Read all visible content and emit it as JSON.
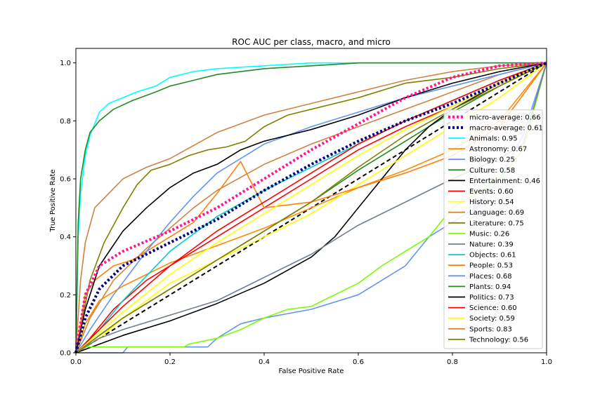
{
  "chart_data": {
    "type": "line",
    "title": "ROC AUC per class, macro, and micro",
    "xlabel": "False Positive Rate",
    "ylabel": "True Positive Rate",
    "xlim": [
      0,
      1
    ],
    "ylim": [
      0,
      1.05
    ],
    "xticks": [
      "0.0",
      "0.2",
      "0.4",
      "0.6",
      "0.8",
      "1.0"
    ],
    "yticks": [
      "0.0",
      "0.2",
      "0.4",
      "0.6",
      "0.8",
      "1.0"
    ],
    "legend_position": "lower-right",
    "grid": false,
    "chance_line": {
      "x": [
        0,
        1
      ],
      "y": [
        0,
        1
      ],
      "color": "#000000",
      "style": "dashed"
    },
    "series": [
      {
        "name": "micro-average: 0.66",
        "color": "#ff1493",
        "style": "dotted",
        "x": [
          0,
          0.02,
          0.05,
          0.1,
          0.2,
          0.3,
          0.4,
          0.5,
          0.6,
          0.7,
          0.8,
          0.9,
          1.0
        ],
        "y": [
          0,
          0.2,
          0.3,
          0.35,
          0.42,
          0.5,
          0.6,
          0.7,
          0.79,
          0.88,
          0.95,
          0.99,
          1.0
        ]
      },
      {
        "name": "macro-average: 0.61",
        "color": "#000080",
        "style": "dotted",
        "x": [
          0,
          0.02,
          0.05,
          0.1,
          0.2,
          0.3,
          0.4,
          0.5,
          0.6,
          0.7,
          0.8,
          0.9,
          1.0
        ],
        "y": [
          0,
          0.12,
          0.22,
          0.3,
          0.38,
          0.46,
          0.56,
          0.65,
          0.73,
          0.8,
          0.86,
          0.93,
          1.0
        ]
      },
      {
        "name": "Animals: 0.95",
        "color": "#00ffff",
        "style": "solid",
        "x": [
          0,
          0.005,
          0.01,
          0.02,
          0.03,
          0.05,
          0.07,
          0.1,
          0.13,
          0.17,
          0.2,
          0.25,
          0.3,
          0.4,
          0.5,
          0.6,
          0.8,
          1.0
        ],
        "y": [
          0,
          0.4,
          0.55,
          0.68,
          0.75,
          0.83,
          0.86,
          0.88,
          0.9,
          0.92,
          0.95,
          0.97,
          0.98,
          0.99,
          1.0,
          1.0,
          1.0,
          1.0
        ]
      },
      {
        "name": "Astronomy: 0.67",
        "color": "#ff8c00",
        "style": "solid",
        "x": [
          0,
          0.02,
          0.05,
          0.1,
          0.15,
          0.2,
          0.25,
          0.3,
          0.35,
          0.4,
          0.5,
          0.6,
          0.7,
          0.8,
          0.9,
          1.0
        ],
        "y": [
          0,
          0.1,
          0.18,
          0.23,
          0.27,
          0.31,
          0.34,
          0.37,
          0.4,
          0.43,
          0.5,
          0.57,
          0.63,
          0.7,
          0.8,
          1.0
        ]
      },
      {
        "name": "Biology: 0.25",
        "color": "#6495ed",
        "style": "solid",
        "x": [
          0,
          0.1,
          0.11,
          0.28,
          0.3,
          0.35,
          0.4,
          0.5,
          0.6,
          0.7,
          0.75,
          0.8,
          0.85,
          0.9,
          0.95,
          1.0
        ],
        "y": [
          0,
          0.0,
          0.02,
          0.02,
          0.05,
          0.1,
          0.12,
          0.15,
          0.2,
          0.3,
          0.4,
          0.45,
          0.5,
          0.6,
          0.75,
          1.0
        ]
      },
      {
        "name": "Culture: 0.58",
        "color": "#228b22",
        "style": "solid",
        "x": [
          0,
          0.05,
          0.1,
          0.2,
          0.3,
          0.4,
          0.5,
          0.6,
          0.7,
          0.8,
          0.9,
          1.0
        ],
        "y": [
          0,
          0.06,
          0.12,
          0.22,
          0.32,
          0.42,
          0.52,
          0.63,
          0.73,
          0.83,
          0.92,
          1.0
        ]
      },
      {
        "name": "Entertainment: 0.46",
        "color": "#000000",
        "style": "solid",
        "x": [
          0,
          0.05,
          0.1,
          0.2,
          0.3,
          0.4,
          0.5,
          0.55,
          0.6,
          0.65,
          0.7,
          0.75,
          0.8,
          0.9,
          1.0
        ],
        "y": [
          0,
          0.03,
          0.06,
          0.11,
          0.17,
          0.24,
          0.33,
          0.4,
          0.5,
          0.6,
          0.7,
          0.78,
          0.84,
          0.93,
          1.0
        ]
      },
      {
        "name": "Events: 0.60",
        "color": "#ff0000",
        "style": "solid",
        "x": [
          0,
          0.03,
          0.08,
          0.15,
          0.2,
          0.3,
          0.4,
          0.5,
          0.6,
          0.7,
          0.8,
          0.9,
          1.0
        ],
        "y": [
          0,
          0.05,
          0.15,
          0.25,
          0.3,
          0.4,
          0.5,
          0.6,
          0.7,
          0.78,
          0.85,
          0.93,
          1.0
        ]
      },
      {
        "name": "History: 0.54",
        "color": "#ffff00",
        "style": "solid",
        "x": [
          0,
          0.05,
          0.1,
          0.2,
          0.3,
          0.4,
          0.5,
          0.6,
          0.7,
          0.8,
          0.9,
          1.0
        ],
        "y": [
          0,
          0.05,
          0.12,
          0.24,
          0.32,
          0.4,
          0.48,
          0.58,
          0.68,
          0.78,
          0.88,
          1.0
        ]
      },
      {
        "name": "Language: 0.69",
        "color": "#cd853f",
        "style": "solid",
        "x": [
          0,
          0.03,
          0.08,
          0.15,
          0.2,
          0.25,
          0.3,
          0.4,
          0.5,
          0.6,
          0.7,
          0.8,
          0.9,
          1.0
        ],
        "y": [
          0,
          0.12,
          0.25,
          0.36,
          0.43,
          0.5,
          0.56,
          0.65,
          0.72,
          0.78,
          0.84,
          0.9,
          0.96,
          1.0
        ]
      },
      {
        "name": "Literature: 0.75",
        "color": "#808000",
        "style": "solid",
        "x": [
          0,
          0.03,
          0.06,
          0.1,
          0.13,
          0.16,
          0.2,
          0.24,
          0.28,
          0.32,
          0.36,
          0.4,
          0.45,
          0.5,
          0.6,
          0.7,
          0.8,
          0.9,
          1.0
        ],
        "y": [
          0,
          0.25,
          0.38,
          0.5,
          0.58,
          0.63,
          0.65,
          0.68,
          0.7,
          0.71,
          0.73,
          0.78,
          0.82,
          0.84,
          0.88,
          0.93,
          0.95,
          0.98,
          1.0
        ]
      },
      {
        "name": "Music: 0.26",
        "color": "#7cfc00",
        "style": "solid",
        "x": [
          0,
          0.02,
          0.23,
          0.24,
          0.3,
          0.35,
          0.4,
          0.45,
          0.5,
          0.6,
          0.65,
          0.7,
          0.75,
          0.8,
          0.85,
          0.9,
          0.95,
          1.0
        ],
        "y": [
          0,
          0.02,
          0.02,
          0.03,
          0.05,
          0.08,
          0.12,
          0.15,
          0.16,
          0.24,
          0.3,
          0.35,
          0.4,
          0.5,
          0.55,
          0.6,
          0.7,
          1.0
        ]
      },
      {
        "name": "Nature: 0.39",
        "color": "#708090",
        "style": "solid",
        "x": [
          0,
          0.05,
          0.1,
          0.2,
          0.3,
          0.4,
          0.5,
          0.6,
          0.7,
          0.8,
          0.9,
          0.95,
          1.0
        ],
        "y": [
          0,
          0.05,
          0.08,
          0.13,
          0.18,
          0.26,
          0.34,
          0.44,
          0.52,
          0.6,
          0.67,
          0.72,
          1.0
        ]
      },
      {
        "name": "Objects: 0.61",
        "color": "#00ced1",
        "style": "solid",
        "x": [
          0,
          0.05,
          0.1,
          0.2,
          0.3,
          0.4,
          0.5,
          0.6,
          0.7,
          0.8,
          0.9,
          1.0
        ],
        "y": [
          0,
          0.08,
          0.18,
          0.35,
          0.47,
          0.56,
          0.64,
          0.72,
          0.8,
          0.87,
          0.94,
          1.0
        ]
      },
      {
        "name": "People: 0.53",
        "color": "#ff7f0e",
        "style": "solid",
        "x": [
          0,
          0.02,
          0.04,
          0.08,
          0.12,
          0.18,
          0.25,
          0.3,
          0.35,
          0.4,
          0.5,
          0.6,
          0.7,
          0.8,
          0.9,
          1.0
        ],
        "y": [
          0,
          0.2,
          0.25,
          0.3,
          0.32,
          0.38,
          0.45,
          0.55,
          0.66,
          0.5,
          0.52,
          0.57,
          0.62,
          0.68,
          0.78,
          1.0
        ]
      },
      {
        "name": "Places: 0.68",
        "color": "#6495ed",
        "style": "solid",
        "x": [
          0,
          0.03,
          0.08,
          0.15,
          0.2,
          0.25,
          0.3,
          0.4,
          0.5,
          0.6,
          0.7,
          0.8,
          0.9,
          1.0
        ],
        "y": [
          0,
          0.08,
          0.2,
          0.35,
          0.45,
          0.54,
          0.62,
          0.72,
          0.78,
          0.83,
          0.88,
          0.92,
          0.96,
          1.0
        ]
      },
      {
        "name": "Plants: 0.94",
        "color": "#228b22",
        "style": "solid",
        "x": [
          0,
          0.005,
          0.01,
          0.02,
          0.03,
          0.05,
          0.08,
          0.12,
          0.17,
          0.2,
          0.25,
          0.3,
          0.4,
          0.5,
          0.6,
          0.8,
          1.0
        ],
        "y": [
          0,
          0.45,
          0.6,
          0.7,
          0.76,
          0.8,
          0.84,
          0.87,
          0.9,
          0.92,
          0.94,
          0.96,
          0.98,
          0.99,
          1.0,
          1.0,
          1.0
        ]
      },
      {
        "name": "Politics: 0.73",
        "color": "#000000",
        "style": "solid",
        "x": [
          0,
          0.02,
          0.05,
          0.1,
          0.15,
          0.2,
          0.25,
          0.3,
          0.35,
          0.4,
          0.5,
          0.6,
          0.7,
          0.8,
          0.9,
          1.0
        ],
        "y": [
          0,
          0.15,
          0.3,
          0.42,
          0.5,
          0.57,
          0.62,
          0.65,
          0.7,
          0.73,
          0.77,
          0.82,
          0.88,
          0.93,
          0.97,
          1.0
        ]
      },
      {
        "name": "Science: 0.60",
        "color": "#ff0000",
        "style": "solid",
        "x": [
          0,
          0.05,
          0.1,
          0.2,
          0.3,
          0.4,
          0.5,
          0.6,
          0.7,
          0.8,
          0.9,
          1.0
        ],
        "y": [
          0,
          0.08,
          0.16,
          0.3,
          0.42,
          0.52,
          0.62,
          0.72,
          0.8,
          0.87,
          0.94,
          1.0
        ]
      },
      {
        "name": "Society: 0.59",
        "color": "#ffff00",
        "style": "solid",
        "x": [
          0,
          0.05,
          0.1,
          0.2,
          0.3,
          0.4,
          0.5,
          0.6,
          0.7,
          0.8,
          0.9,
          1.0
        ],
        "y": [
          0,
          0.07,
          0.14,
          0.27,
          0.38,
          0.48,
          0.58,
          0.68,
          0.77,
          0.85,
          0.93,
          1.0
        ]
      },
      {
        "name": "Sports: 0.83",
        "color": "#cd853f",
        "style": "solid",
        "x": [
          0,
          0.01,
          0.02,
          0.04,
          0.07,
          0.1,
          0.15,
          0.2,
          0.3,
          0.4,
          0.5,
          0.6,
          0.7,
          0.8,
          0.9,
          1.0
        ],
        "y": [
          0,
          0.25,
          0.38,
          0.5,
          0.55,
          0.6,
          0.64,
          0.67,
          0.76,
          0.82,
          0.86,
          0.9,
          0.94,
          0.97,
          0.99,
          1.0
        ]
      },
      {
        "name": "Technology: 0.56",
        "color": "#808000",
        "style": "solid",
        "x": [
          0,
          0.05,
          0.1,
          0.2,
          0.3,
          0.4,
          0.5,
          0.6,
          0.7,
          0.8,
          0.9,
          1.0
        ],
        "y": [
          0,
          0.06,
          0.12,
          0.22,
          0.32,
          0.42,
          0.52,
          0.64,
          0.75,
          0.84,
          0.92,
          1.0
        ]
      }
    ]
  }
}
